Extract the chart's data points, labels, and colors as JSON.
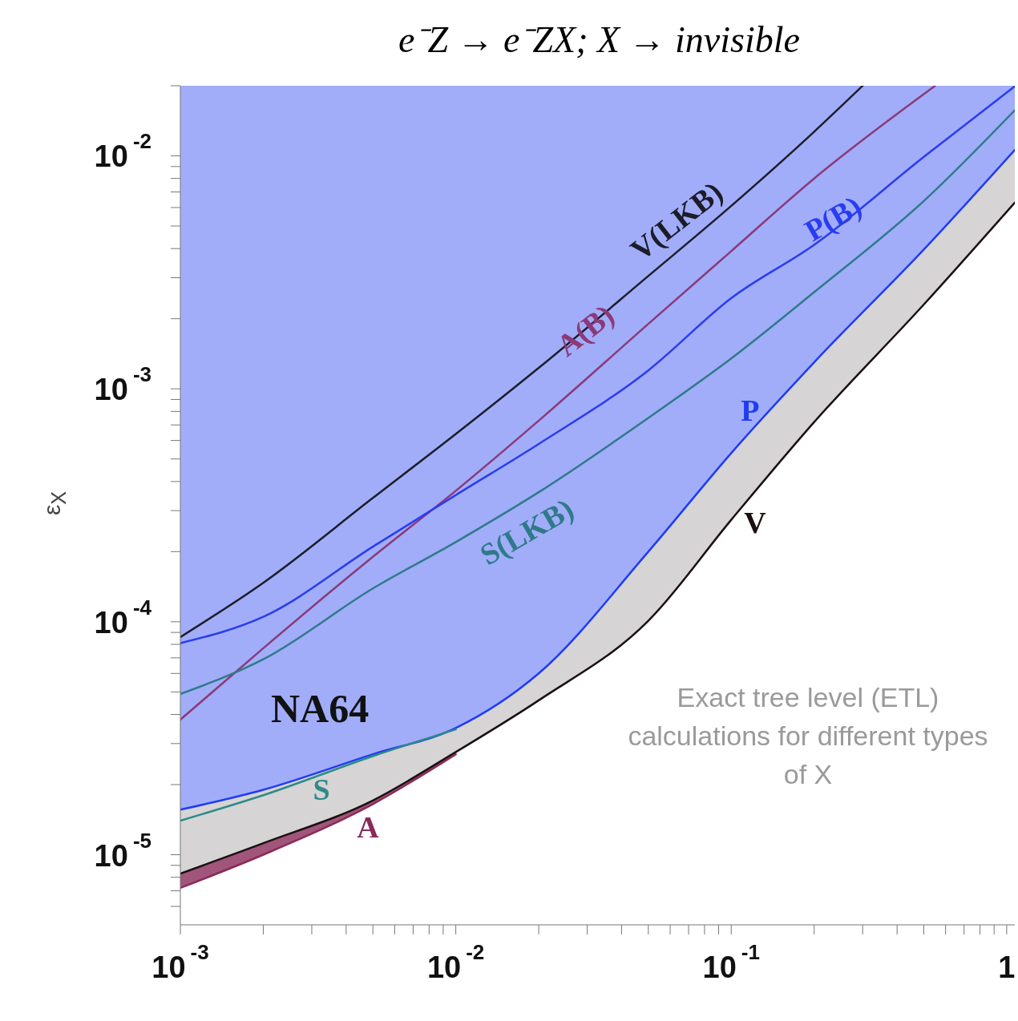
{
  "chart_data": {
    "type": "line",
    "title": "e⁻Z → e⁻ZX; X → invisible",
    "ylabel": "ε$_{X}$",
    "log": "xy",
    "grid": false,
    "legend": false,
    "marker": "none",
    "line_style": "solid",
    "xlim": [
      0.001,
      1.07
    ],
    "ylim": [
      5e-06,
      0.02
    ],
    "xticks": [
      {
        "value": 0.001,
        "label": "10$^{-3}$"
      },
      {
        "value": 0.002,
        "label": null
      },
      {
        "value": 0.003,
        "label": null
      },
      {
        "value": 0.004,
        "label": null
      },
      {
        "value": 0.005,
        "label": null
      },
      {
        "value": 0.006,
        "label": null
      },
      {
        "value": 0.007,
        "label": null
      },
      {
        "value": 0.008,
        "label": null
      },
      {
        "value": 0.009,
        "label": null
      },
      {
        "value": 0.01,
        "label": "10$^{-2}$"
      },
      {
        "value": 0.02,
        "label": null
      },
      {
        "value": 0.03,
        "label": null
      },
      {
        "value": 0.04,
        "label": null
      },
      {
        "value": 0.05,
        "label": null
      },
      {
        "value": 0.06,
        "label": null
      },
      {
        "value": 0.07,
        "label": null
      },
      {
        "value": 0.08,
        "label": null
      },
      {
        "value": 0.09,
        "label": null
      },
      {
        "value": 0.1,
        "label": "10$^{-1}$"
      },
      {
        "value": 0.2,
        "label": null
      },
      {
        "value": 0.3,
        "label": null
      },
      {
        "value": 0.4,
        "label": null
      },
      {
        "value": 0.5,
        "label": null
      },
      {
        "value": 0.6,
        "label": null
      },
      {
        "value": 0.7,
        "label": null
      },
      {
        "value": 0.8,
        "label": null
      },
      {
        "value": 0.9,
        "label": null
      },
      1
    ],
    "yticks": [
      {
        "value": 6e-06,
        "label": null
      },
      {
        "value": 7e-06,
        "label": null
      },
      {
        "value": 8e-06,
        "label": null
      },
      {
        "value": 9e-06,
        "label": null
      },
      {
        "value": 1e-05,
        "label": "10$^{-5}$"
      },
      {
        "value": 2e-05,
        "label": null
      },
      {
        "value": 3e-05,
        "label": null
      },
      {
        "value": 4e-05,
        "label": null
      },
      {
        "value": 5e-05,
        "label": null
      },
      {
        "value": 6e-05,
        "label": null
      },
      {
        "value": 7e-05,
        "label": null
      },
      {
        "value": 8e-05,
        "label": null
      },
      {
        "value": 9e-05,
        "label": null
      },
      {
        "value": 0.0001,
        "label": "10$^{-4}$"
      },
      {
        "value": 0.0002,
        "label": null
      },
      {
        "value": 0.0003,
        "label": null
      },
      {
        "value": 0.0004,
        "label": null
      },
      {
        "value": 0.0005,
        "label": null
      },
      {
        "value": 0.0006,
        "label": null
      },
      {
        "value": 0.0007,
        "label": null
      },
      {
        "value": 0.0008,
        "label": null
      },
      {
        "value": 0.0009,
        "label": null
      },
      {
        "value": 0.001,
        "label": "10$^{-3}$"
      },
      {
        "value": 0.002,
        "label": null
      },
      {
        "value": 0.003,
        "label": null
      },
      {
        "value": 0.004,
        "label": null
      },
      {
        "value": 0.005,
        "label": null
      },
      {
        "value": 0.006,
        "label": null
      },
      {
        "value": 0.007,
        "label": null
      },
      {
        "value": 0.008,
        "label": null
      },
      {
        "value": 0.009,
        "label": null
      },
      {
        "value": 0.01,
        "label": "10$^{-2}$"
      },
      {
        "value": 0.02,
        "label": null
      }
    ],
    "annotations": [
      "NA64",
      "Exact tree level (ETL) calculations for different types of X"
    ],
    "series": [
      {
        "name": "V(LKB)",
        "color": "#1c1c2a",
        "x": [
          0.001,
          0.002,
          0.005,
          0.01,
          0.02,
          0.05,
          0.1,
          0.2,
          0.3
        ],
        "values": [
          8.6e-05,
          0.000147,
          0.00034,
          0.00064,
          0.00123,
          0.00305,
          0.0061,
          0.0127,
          0.02
        ]
      },
      {
        "name": "A(B)",
        "color": "#8a3a7a",
        "x": [
          0.001,
          0.002,
          0.005,
          0.01,
          0.02,
          0.05,
          0.1,
          0.2,
          0.55
        ],
        "values": [
          3.8e-05,
          7.7e-05,
          0.00019,
          0.000365,
          0.00073,
          0.0019,
          0.0039,
          0.008,
          0.02
        ]
      },
      {
        "name": "P(B)",
        "color": "#2a3cf0",
        "x": [
          0.001,
          0.002,
          0.005,
          0.01,
          0.02,
          0.05,
          0.1,
          0.2,
          0.5,
          1.07
        ],
        "values": [
          8.1e-05,
          0.000105,
          0.00021,
          0.00035,
          0.00058,
          0.0012,
          0.00245,
          0.00415,
          0.0099,
          0.0199
        ]
      },
      {
        "name": "S(LKB)",
        "color": "#2f7a8a",
        "x": [
          0.001,
          0.002,
          0.005,
          0.01,
          0.02,
          0.05,
          0.1,
          0.2,
          0.5,
          1.07
        ],
        "values": [
          4.9e-05,
          6.9e-05,
          0.000139,
          0.00022,
          0.00036,
          0.00075,
          0.00135,
          0.0026,
          0.0064,
          0.0157
        ]
      },
      {
        "name": "P",
        "color": "#1f3cf0",
        "x": [
          0.001,
          0.002,
          0.005,
          0.01,
          0.02,
          0.05,
          0.1,
          0.2,
          0.5,
          1.07
        ],
        "values": [
          1.56e-05,
          1.9e-05,
          2.7e-05,
          3.5e-05,
          6e-05,
          0.0002,
          0.00053,
          0.0013,
          0.00396,
          0.0106
        ],
        "lower": [
          1.56e-05,
          1.9e-05,
          2.7e-05,
          3.5e-05,
          6e-05,
          0.0002,
          0.00053,
          0.0013,
          0.00396,
          0.0106
        ],
        "upper": [
          0.02,
          0.02,
          0.02,
          0.02,
          0.02,
          0.02,
          0.02,
          0.02,
          0.02,
          0.02
        ]
      },
      {
        "name": "S",
        "color": "#2f8a8a",
        "x": [
          0.001,
          0.002,
          0.005,
          0.01
        ],
        "values": [
          1.4e-05,
          1.8e-05,
          2.65e-05,
          3.45e-05
        ]
      },
      {
        "name": "V",
        "color": "#1a1010",
        "x": [
          0.001,
          0.002,
          0.005,
          0.01,
          0.02,
          0.05,
          0.1,
          0.2,
          0.5,
          1.07
        ],
        "values": [
          8.3e-06,
          1.12e-05,
          1.71e-05,
          2.76e-05,
          4.6e-05,
          0.000101,
          0.000274,
          0.00072,
          0.0023,
          0.0063
        ],
        "lower": [
          8.3e-06,
          1.12e-05,
          1.71e-05,
          2.76e-05,
          4.6e-05,
          0.000101,
          0.000274,
          0.00072,
          0.0023,
          0.0063
        ],
        "upper": [
          1.56e-05,
          1.9e-05,
          2.7e-05,
          3.5e-05,
          6e-05,
          0.0002,
          0.00053,
          0.0013,
          0.00396,
          0.0106
        ]
      },
      {
        "name": "A",
        "color": "#8a2a5a",
        "x": [
          0.001,
          0.002,
          0.005,
          0.01
        ],
        "values": [
          7.2e-06,
          1e-05,
          1.65e-05,
          2.7e-05
        ],
        "lower": [
          7.2e-06,
          1e-05,
          1.65e-05,
          2.7e-05
        ],
        "upper": [
          8.3e-06,
          1.12e-05,
          1.71e-05,
          2.76e-05
        ]
      }
    ]
  }
}
